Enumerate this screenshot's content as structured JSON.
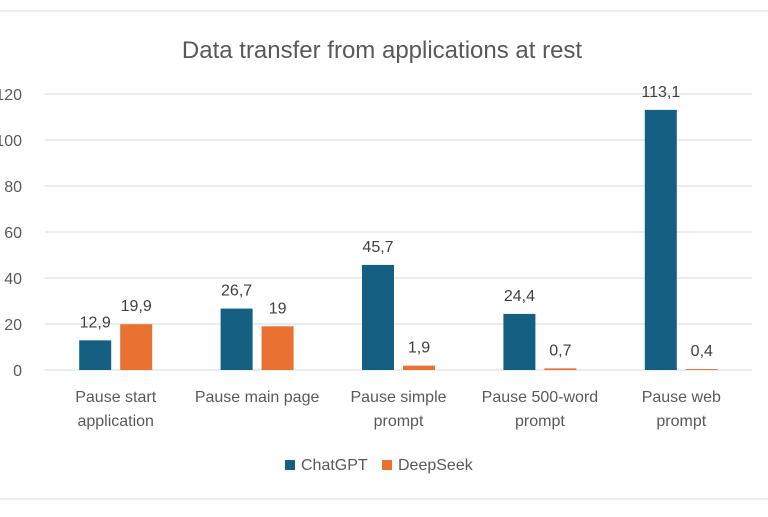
{
  "chart_data": {
    "type": "bar",
    "title": "Data transfer from applications at rest",
    "categories": [
      [
        "Pause start",
        "application"
      ],
      [
        "Pause main page"
      ],
      [
        "Pause simple",
        "prompt"
      ],
      [
        "Pause 500-word",
        "prompt"
      ],
      [
        "Pause web",
        "prompt"
      ]
    ],
    "series": [
      {
        "name": "ChatGPT",
        "values": [
          12.9,
          26.7,
          45.7,
          24.4,
          113.1
        ],
        "labels": [
          "12,9",
          "26,7",
          "45,7",
          "24,4",
          "113,1"
        ],
        "color": "#156082"
      },
      {
        "name": "DeepSeek",
        "values": [
          19.9,
          19,
          1.9,
          0.7,
          0.4
        ],
        "labels": [
          "19,9",
          "19",
          "1,9",
          "0,7",
          "0,4"
        ],
        "color": "#E97132"
      }
    ],
    "y_ticks": [
      "0",
      "20",
      "40",
      "60",
      "80",
      "100",
      "120"
    ],
    "ylim": [
      0,
      120
    ],
    "grid": true,
    "legend_position": "bottom"
  }
}
